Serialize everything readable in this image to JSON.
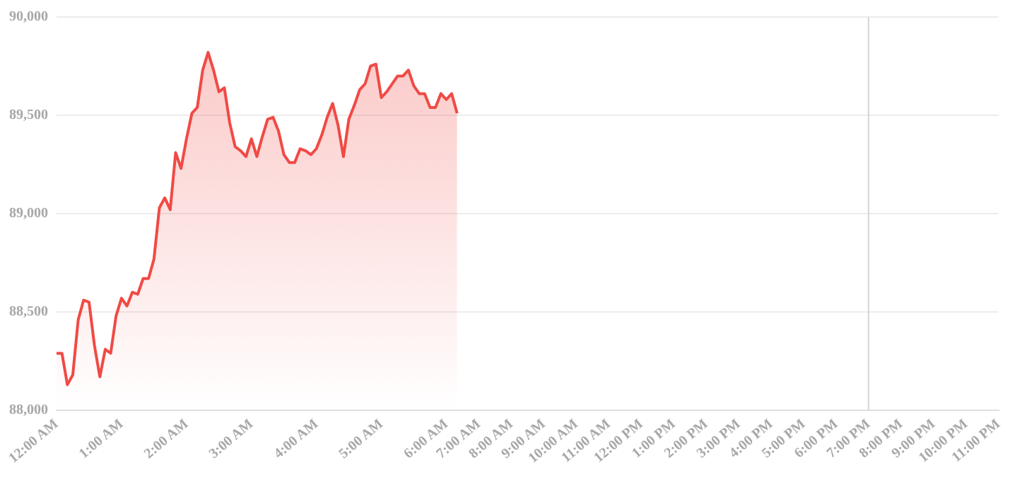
{
  "chart_data": {
    "type": "area",
    "categories": [
      "12:00 AM",
      null,
      null,
      null,
      null,
      null,
      null,
      null,
      null,
      null,
      null,
      null,
      "1:00 AM",
      null,
      null,
      null,
      null,
      null,
      null,
      null,
      null,
      null,
      null,
      null,
      "2:00 AM",
      null,
      null,
      null,
      null,
      null,
      null,
      null,
      null,
      null,
      null,
      null,
      "3:00 AM",
      null,
      null,
      null,
      null,
      null,
      null,
      null,
      null,
      null,
      null,
      null,
      "4:00 AM",
      null,
      null,
      null,
      null,
      null,
      null,
      null,
      null,
      null,
      null,
      null,
      "5:00 AM",
      null,
      null,
      null,
      null,
      null,
      null,
      null,
      null,
      null,
      null,
      null,
      "6:00 AM",
      null,
      null,
      null,
      null,
      null,
      "7:00 AM",
      null,
      null,
      null,
      null,
      null,
      "8:00 AM",
      null,
      null,
      null,
      null,
      null,
      "9:00 AM",
      null,
      null,
      null,
      null,
      null,
      "10:00 AM",
      null,
      null,
      null,
      null,
      null,
      "11:00 AM",
      null,
      null,
      null,
      null,
      null,
      "12:00 PM",
      null,
      null,
      null,
      null,
      null,
      "1:00 PM",
      null,
      null,
      null,
      null,
      null,
      "2:00 PM",
      null,
      null,
      null,
      null,
      null,
      "3:00 PM",
      null,
      null,
      null,
      null,
      null,
      "4:00 PM",
      null,
      null,
      null,
      null,
      null,
      "5:00 PM",
      null,
      null,
      null,
      null,
      null,
      "6:00 PM",
      null,
      null,
      null,
      null,
      null,
      "7:00 PM",
      null,
      null,
      null,
      null,
      null,
      "8:00 PM",
      null,
      null,
      null,
      null,
      null,
      "9:00 PM",
      null,
      null,
      null,
      null,
      null,
      "10:00 PM",
      null,
      null,
      null,
      null,
      null,
      "11:00 PM"
    ],
    "values": [
      88290,
      88290,
      88130,
      88180,
      88460,
      88560,
      88550,
      88330,
      88170,
      88310,
      88290,
      88480,
      88570,
      88530,
      88600,
      88590,
      88670,
      88670,
      88770,
      89030,
      89080,
      89020,
      89310,
      89230,
      89380,
      89510,
      89540,
      89730,
      89820,
      89730,
      89620,
      89640,
      89460,
      89340,
      89320,
      89290,
      89380,
      89290,
      89390,
      89480,
      89490,
      89420,
      89300,
      89260,
      89260,
      89330,
      89320,
      89300,
      89330,
      89400,
      89490,
      89560,
      89450,
      89290,
      89480,
      89550,
      89630,
      89660,
      89750,
      89760,
      89590,
      89620,
      89660,
      89700,
      89700,
      89730,
      89650,
      89610,
      89610,
      89540,
      89540,
      89610,
      89580,
      89610,
      89510,
      null,
      null,
      null,
      null,
      null,
      null,
      null,
      null,
      null,
      null,
      null,
      null,
      null,
      null,
      null,
      null,
      null,
      null,
      null,
      null,
      null,
      null,
      null,
      null,
      null,
      null,
      null,
      null,
      null,
      null,
      null,
      null,
      null,
      null,
      null,
      null,
      null,
      null,
      null,
      null,
      null,
      null,
      null,
      null,
      null,
      null,
      null,
      null,
      null,
      null,
      null,
      null,
      null,
      null,
      null,
      null,
      null,
      null,
      null,
      null,
      null,
      null,
      null,
      null,
      null,
      null,
      null,
      null,
      null,
      null,
      null,
      null,
      null,
      null,
      null,
      null,
      null,
      null,
      null,
      null,
      null,
      null,
      null,
      null,
      null,
      null,
      null,
      null,
      null,
      null,
      null,
      null,
      null,
      null,
      null,
      null,
      null,
      null,
      null,
      null
    ],
    "color": "#f04a45",
    "ylim": [
      88000,
      90000
    ],
    "yticks": [
      {
        "value": 88000,
        "label": "88,000"
      },
      {
        "value": 88500,
        "label": "88,500"
      },
      {
        "value": 89000,
        "label": "89,000"
      },
      {
        "value": 89500,
        "label": "89,500"
      },
      {
        "value": 90000,
        "label": "90,000"
      }
    ],
    "grid": "y",
    "legend": false,
    "ref_lines": [
      {
        "axis": "x",
        "value": "7:00 PM",
        "color": "#d4d4d4"
      }
    ]
  }
}
